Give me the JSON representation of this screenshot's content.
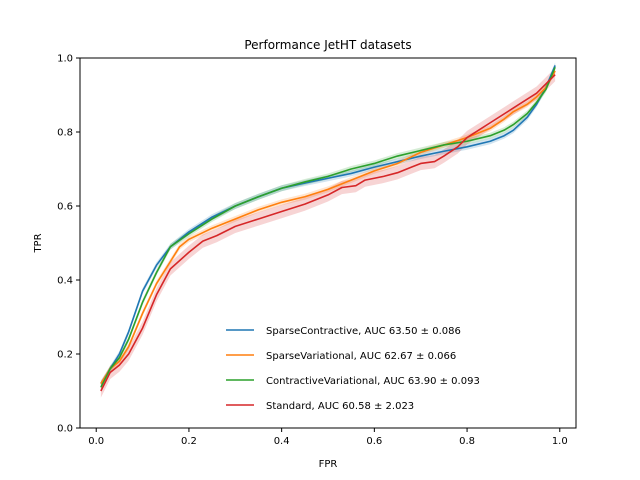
{
  "chart_data": {
    "type": "line",
    "title": "Performance JetHT datasets",
    "xlabel": "FPR",
    "ylabel": "TPR",
    "xlim": [
      -0.035,
      1.035
    ],
    "ylim": [
      0.0,
      1.0
    ],
    "xticks": [
      0.0,
      0.2,
      0.4,
      0.6,
      0.8,
      1.0
    ],
    "xtick_labels": [
      "0.0",
      "0.2",
      "0.4",
      "0.6",
      "0.8",
      "1.0"
    ],
    "yticks": [
      0.0,
      0.2,
      0.4,
      0.6,
      0.8,
      1.0
    ],
    "ytick_labels": [
      "0.0",
      "0.2",
      "0.4",
      "0.6",
      "0.8",
      "1.0"
    ],
    "grid": false,
    "legend_position": "lower-right",
    "series": [
      {
        "name": "SparseContractive, AUC 63.50 ± 0.086",
        "color": "#1f77b4",
        "band": 0.008,
        "x": [
          0.01,
          0.03,
          0.05,
          0.07,
          0.1,
          0.13,
          0.16,
          0.2,
          0.25,
          0.3,
          0.35,
          0.4,
          0.45,
          0.5,
          0.55,
          0.6,
          0.65,
          0.7,
          0.75,
          0.8,
          0.85,
          0.88,
          0.9,
          0.93,
          0.95,
          0.97,
          0.99
        ],
        "y": [
          0.12,
          0.16,
          0.2,
          0.26,
          0.37,
          0.44,
          0.49,
          0.53,
          0.57,
          0.6,
          0.625,
          0.648,
          0.662,
          0.675,
          0.688,
          0.705,
          0.72,
          0.735,
          0.748,
          0.76,
          0.775,
          0.79,
          0.805,
          0.84,
          0.875,
          0.92,
          0.98
        ]
      },
      {
        "name": "SparseVariational, AUC 62.67 ± 0.066",
        "color": "#ff7f0e",
        "band": 0.008,
        "x": [
          0.01,
          0.03,
          0.05,
          0.07,
          0.1,
          0.13,
          0.16,
          0.18,
          0.2,
          0.25,
          0.3,
          0.35,
          0.4,
          0.45,
          0.5,
          0.55,
          0.6,
          0.65,
          0.7,
          0.75,
          0.8,
          0.85,
          0.88,
          0.9,
          0.93,
          0.95,
          0.97,
          0.99
        ],
        "y": [
          0.12,
          0.16,
          0.18,
          0.22,
          0.31,
          0.39,
          0.45,
          0.49,
          0.51,
          0.54,
          0.565,
          0.59,
          0.61,
          0.625,
          0.645,
          0.67,
          0.695,
          0.715,
          0.745,
          0.765,
          0.785,
          0.81,
          0.835,
          0.855,
          0.875,
          0.895,
          0.92,
          0.965
        ]
      },
      {
        "name": "ContractiveVariational, AUC 63.90 ± 0.093",
        "color": "#2ca02c",
        "band": 0.008,
        "x": [
          0.01,
          0.03,
          0.05,
          0.07,
          0.1,
          0.13,
          0.16,
          0.2,
          0.25,
          0.3,
          0.35,
          0.4,
          0.45,
          0.5,
          0.55,
          0.6,
          0.65,
          0.7,
          0.75,
          0.8,
          0.85,
          0.88,
          0.9,
          0.93,
          0.95,
          0.97,
          0.99
        ],
        "y": [
          0.11,
          0.16,
          0.19,
          0.24,
          0.34,
          0.42,
          0.49,
          0.525,
          0.565,
          0.6,
          0.625,
          0.648,
          0.665,
          0.68,
          0.7,
          0.715,
          0.735,
          0.75,
          0.765,
          0.775,
          0.79,
          0.805,
          0.82,
          0.85,
          0.88,
          0.915,
          0.975
        ]
      },
      {
        "name": "Standard, AUC 60.58 ± 2.023",
        "color": "#d62728",
        "band": 0.018,
        "x": [
          0.01,
          0.03,
          0.05,
          0.07,
          0.1,
          0.13,
          0.16,
          0.2,
          0.23,
          0.26,
          0.3,
          0.35,
          0.4,
          0.45,
          0.5,
          0.53,
          0.56,
          0.58,
          0.6,
          0.62,
          0.65,
          0.68,
          0.7,
          0.73,
          0.75,
          0.78,
          0.8,
          0.85,
          0.9,
          0.95,
          0.99
        ],
        "y": [
          0.1,
          0.15,
          0.17,
          0.2,
          0.27,
          0.36,
          0.43,
          0.475,
          0.505,
          0.52,
          0.545,
          0.565,
          0.585,
          0.605,
          0.63,
          0.65,
          0.655,
          0.67,
          0.675,
          0.68,
          0.69,
          0.705,
          0.715,
          0.72,
          0.735,
          0.76,
          0.785,
          0.825,
          0.865,
          0.905,
          0.955
        ]
      }
    ]
  }
}
